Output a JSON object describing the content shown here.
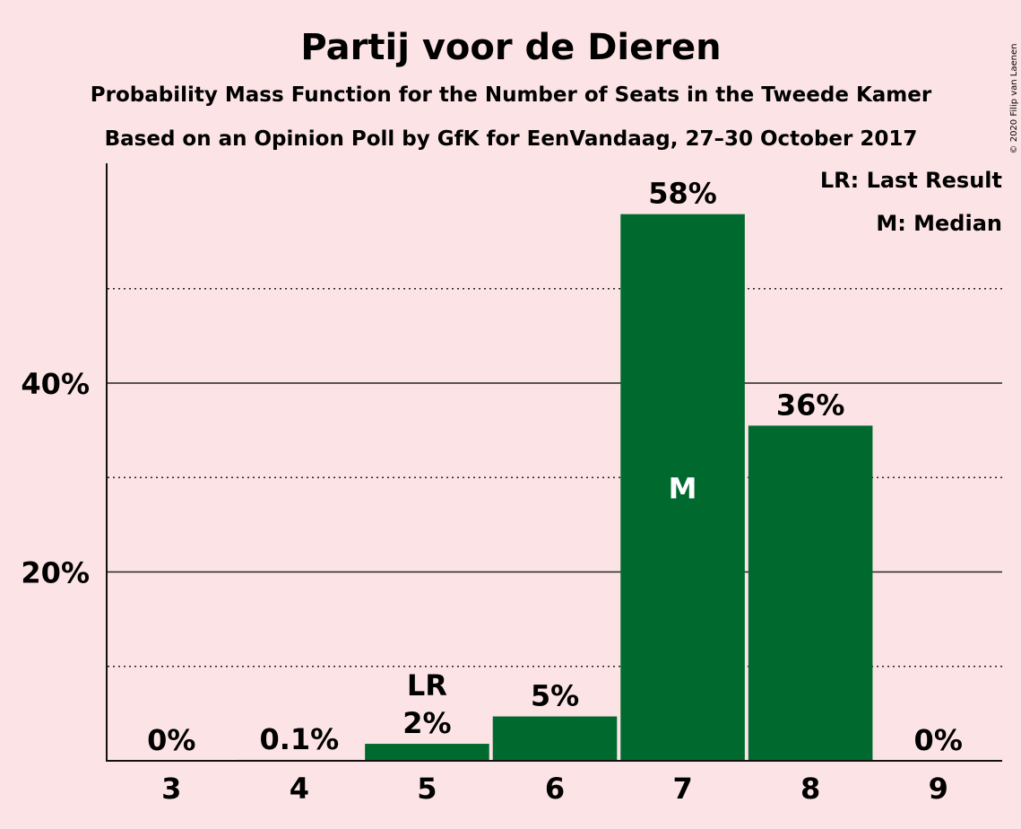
{
  "chart_data": {
    "type": "bar",
    "title": "Partij voor de Dieren",
    "subtitle_1": "Probability Mass Function for the Number of Seats in the Tweede Kamer",
    "subtitle_2": "Based on an Opinion Poll by GfK for EenVandaag, 27–30 October 2017",
    "copyright": "© 2020 Filip van Laenen",
    "categories": [
      "3",
      "4",
      "5",
      "6",
      "7",
      "8",
      "9"
    ],
    "values": [
      0,
      0.1,
      1.8,
      4.7,
      57.9,
      35.5,
      0
    ],
    "value_labels": [
      "0%",
      "0.1%",
      "2%",
      "5%",
      "58%",
      "36%",
      "0%"
    ],
    "ylim": [
      0,
      63
    ],
    "y_ticks": [
      {
        "value": 20,
        "label": "20%"
      },
      {
        "value": 40,
        "label": "40%"
      }
    ],
    "y_minor_gridlines": [
      10,
      30,
      50
    ],
    "last_result": {
      "category": "5",
      "label": "LR"
    },
    "median": {
      "category": "7",
      "label": "M"
    },
    "legend": [
      "LR: Last Result",
      "M: Median"
    ],
    "legend_position": "top-right",
    "bar_color": "#006a2e",
    "background_color": "#fce4e6"
  }
}
